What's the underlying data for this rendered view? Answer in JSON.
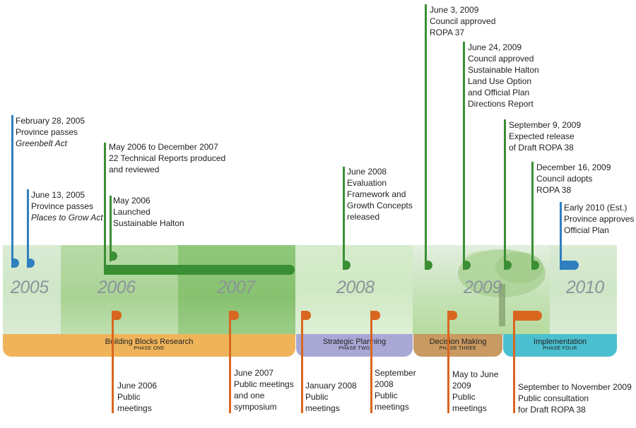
{
  "years": [
    "2005",
    "2006",
    "2007",
    "2008",
    "2009",
    "2010"
  ],
  "phases": [
    {
      "name": "Building Blocks Research",
      "number": "PHASE ONE",
      "color": "#efb45a"
    },
    {
      "name": "Strategic Planning",
      "number": "PHASE TWO",
      "color": "#a9a7d4"
    },
    {
      "name": "Decision Making",
      "number": "PHASE THREE",
      "color": "#c99a61"
    },
    {
      "name": "Implementation",
      "number": "PHASE FOUR",
      "color": "#4bbfcf"
    }
  ],
  "top_events": [
    {
      "date": "February 28, 2005",
      "line2": "Province passes",
      "line3": "Greenbelt Act"
    },
    {
      "date": "June 13, 2005",
      "line2": "Province passes",
      "line3": "Places to Grow Act"
    },
    {
      "date": "May 2006 to December 2007",
      "text": "22 Technical Reports produced\nand reviewed"
    },
    {
      "date": "May 2006",
      "text": "Launched\nSustainable Halton"
    },
    {
      "date": "June 2008",
      "text": "Evaluation\nFramework and\nGrowth Concepts\nreleased"
    },
    {
      "date": "June 3, 2009",
      "text": "Council approved\nROPA 37"
    },
    {
      "date": "June 24, 2009",
      "text": "Council approved\nSustainable Halton\nLand Use Option\nand Official Plan\nDirections Report"
    },
    {
      "date": "September 9, 2009",
      "text": "Expected release\nof Draft ROPA 38"
    },
    {
      "date": "December 16, 2009",
      "text": "Council adopts\nROPA 38"
    },
    {
      "date": "Early 2010 (Est.)",
      "text": "Province approves\nOfficial Plan"
    }
  ],
  "bottom_events": [
    {
      "text": "June 2006\nPublic\nmeetings"
    },
    {
      "text": "June 2007\nPublic meetings\nand one\nsymposium"
    },
    {
      "text": "January 2008\nPublic\nmeetings"
    },
    {
      "text": "September\n2008\nPublic\nmeetings"
    },
    {
      "text": "May to June\n2009\nPublic\nmeetings"
    },
    {
      "text": "September to November 2009\nPublic consultation\nfor Draft ROPA 38"
    }
  ]
}
